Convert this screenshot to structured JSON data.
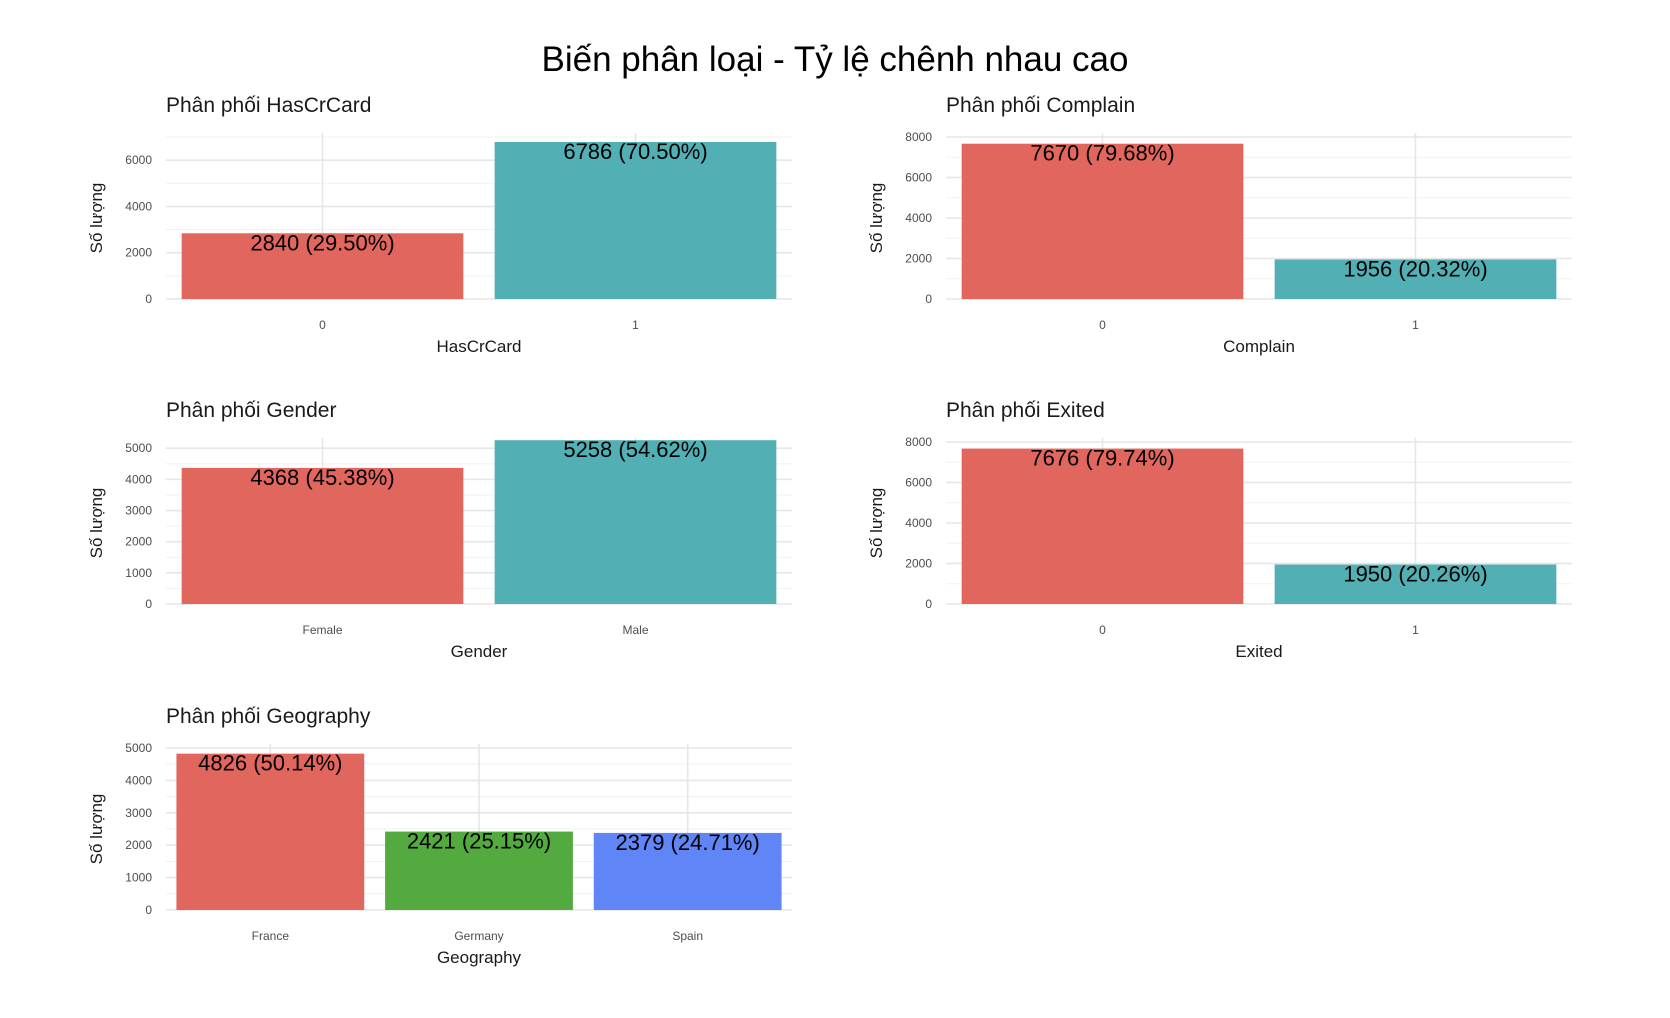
{
  "title": "Biến phân loại - Tỷ lệ chênh nhau cao",
  "chart_data": [
    {
      "type": "bar",
      "title": "Phân phối HasCrCard",
      "xlabel": "HasCrCard",
      "ylabel": "Số lượng",
      "categories": [
        "0",
        "1"
      ],
      "values": [
        2840,
        6786
      ],
      "labels": [
        "2840 (29.50%)",
        "6786 (70.50%)"
      ],
      "colors": [
        "#e1665e",
        "#52b0b5"
      ],
      "ylim": [
        0,
        7000
      ],
      "yticks": [
        0,
        2000,
        4000,
        6000
      ],
      "grid": true,
      "legend": "none"
    },
    {
      "type": "bar",
      "title": "Phân phối Complain",
      "xlabel": "Complain",
      "ylabel": "Số lượng",
      "categories": [
        "0",
        "1"
      ],
      "values": [
        7670,
        1956
      ],
      "labels": [
        "7670 (79.68%)",
        "1956 (20.32%)"
      ],
      "colors": [
        "#e1665e",
        "#52b0b5"
      ],
      "ylim": [
        0,
        8000
      ],
      "yticks": [
        0,
        2000,
        4000,
        6000,
        8000
      ],
      "grid": true,
      "legend": "none"
    },
    {
      "type": "bar",
      "title": "Phân phối Gender",
      "xlabel": "Gender",
      "ylabel": "Số lượng",
      "categories": [
        "Female",
        "Male"
      ],
      "values": [
        4368,
        5258
      ],
      "labels": [
        "4368 (45.38%)",
        "5258 (54.62%)"
      ],
      "colors": [
        "#e1665e",
        "#52b0b5"
      ],
      "ylim": [
        0,
        5200
      ],
      "yticks": [
        0,
        1000,
        2000,
        3000,
        4000,
        5000
      ],
      "grid": true,
      "legend": "none"
    },
    {
      "type": "bar",
      "title": "Phân phối Exited",
      "xlabel": "Exited",
      "ylabel": "Số lượng",
      "categories": [
        "0",
        "1"
      ],
      "values": [
        7676,
        1950
      ],
      "labels": [
        "7676 (79.74%)",
        "1950 (20.26%)"
      ],
      "colors": [
        "#e1665e",
        "#52b0b5"
      ],
      "ylim": [
        0,
        8000
      ],
      "yticks": [
        0,
        2000,
        4000,
        6000,
        8000
      ],
      "grid": true,
      "legend": "none"
    },
    {
      "type": "bar",
      "title": "Phân phối Geography",
      "xlabel": "Geography",
      "ylabel": "Số lượng",
      "categories": [
        "France",
        "Germany",
        "Spain"
      ],
      "values": [
        4826,
        2421,
        2379
      ],
      "labels": [
        "4826 (50.14%)",
        "2421 (25.15%)",
        "2379 (24.71%)"
      ],
      "colors": [
        "#e1665e",
        "#53ab40",
        "#5f85f7"
      ],
      "ylim": [
        0,
        5000
      ],
      "yticks": [
        0,
        1000,
        2000,
        3000,
        4000,
        5000
      ],
      "grid": true,
      "legend": "none"
    }
  ]
}
